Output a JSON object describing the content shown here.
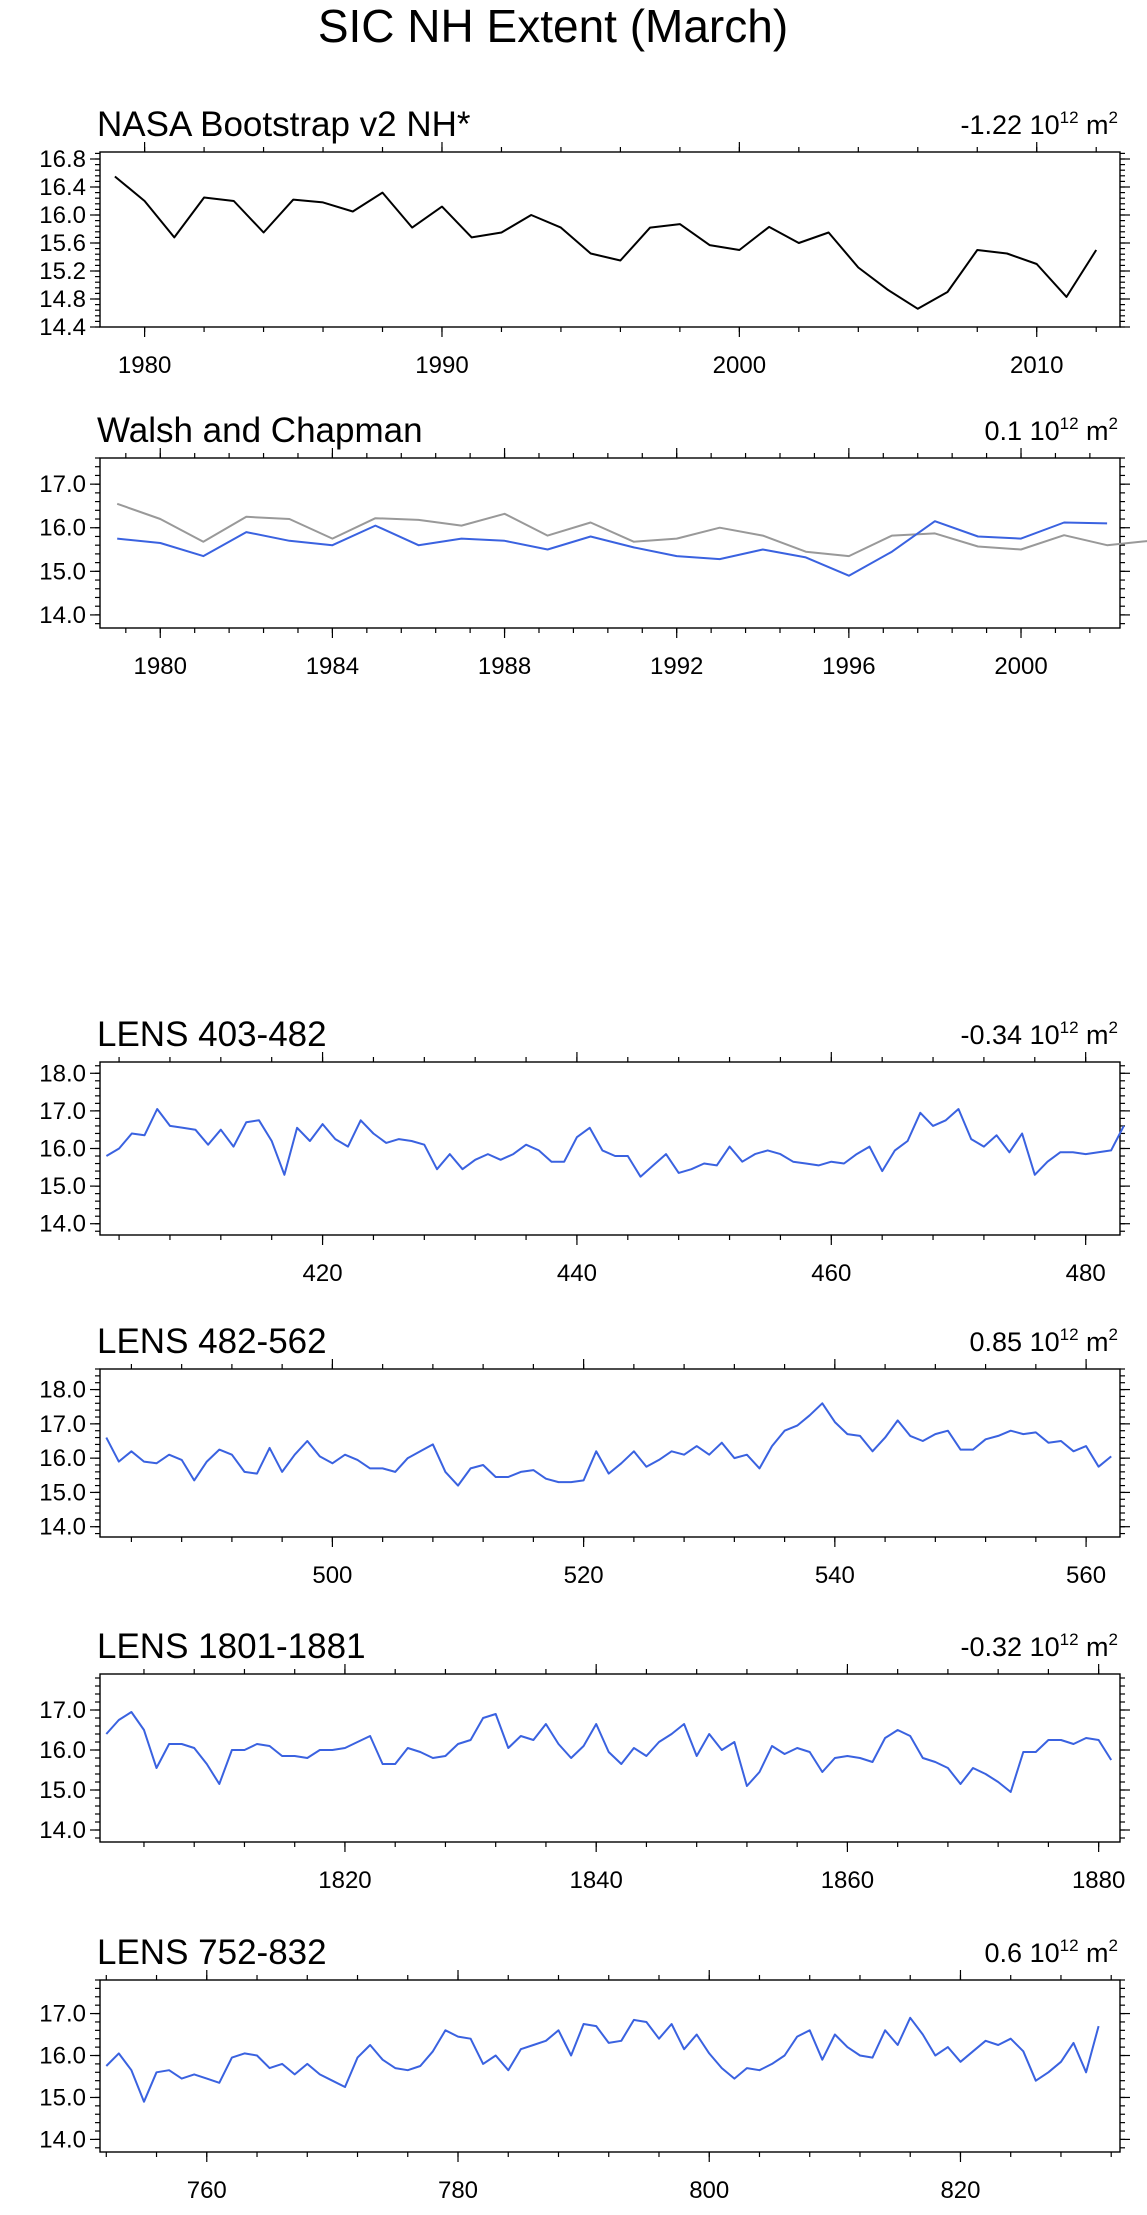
{
  "figure_title": "SIC NH Extent (March)",
  "colors": {
    "black": "#000000",
    "blue": "#3a62e0",
    "gray": "#999999"
  },
  "chart_data": [
    {
      "type": "line",
      "title": "NASA Bootstrap v2 NH*",
      "trend_value": "-1.22 10",
      "trend_exp": "12",
      "trend_unit": " m",
      "trend_unit_exp": "2",
      "xlim": [
        1978.5,
        2012.8
      ],
      "ylim": [
        14.4,
        16.9
      ],
      "xticks": [
        1980,
        1990,
        2000,
        2010
      ],
      "yticks": [
        "14.4",
        "14.8",
        "15.2",
        "15.6",
        "16.0",
        "16.4",
        "16.8"
      ],
      "series": [
        {
          "color": "#000000",
          "x_start": 1979,
          "values": [
            16.55,
            16.2,
            15.68,
            16.25,
            16.2,
            15.75,
            16.22,
            16.18,
            16.05,
            16.32,
            15.82,
            16.12,
            15.68,
            15.75,
            16.0,
            15.82,
            15.45,
            15.35,
            15.82,
            15.87,
            15.57,
            15.5,
            15.83,
            15.6,
            15.75,
            15.25,
            14.93,
            14.66,
            14.9,
            15.5,
            15.45,
            15.3,
            14.83,
            15.5
          ]
        }
      ]
    },
    {
      "type": "line",
      "title": "Walsh and Chapman",
      "trend_value": "0.1 10",
      "trend_exp": "12",
      "trend_unit": " m",
      "trend_unit_exp": "2",
      "xlim": [
        1978.6,
        2002.3
      ],
      "ylim": [
        13.7,
        17.6
      ],
      "xticks": [
        1980,
        1984,
        1988,
        1992,
        1996,
        2000
      ],
      "yticks": [
        "14.0",
        "15.0",
        "16.0",
        "17.0"
      ],
      "series": [
        {
          "color": "#999999",
          "x_start": 1979,
          "values": [
            16.55,
            16.2,
            15.68,
            16.25,
            16.2,
            15.75,
            16.22,
            16.18,
            16.05,
            16.32,
            15.82,
            16.12,
            15.68,
            15.75,
            16.0,
            15.82,
            15.45,
            15.35,
            15.82,
            15.87,
            15.57,
            15.5,
            15.83,
            15.6,
            15.7
          ]
        },
        {
          "color": "#3a62e0",
          "x_start": 1979,
          "values": [
            15.75,
            15.65,
            15.35,
            15.9,
            15.7,
            15.6,
            16.05,
            15.6,
            15.75,
            15.7,
            15.5,
            15.8,
            15.55,
            15.35,
            15.28,
            15.5,
            15.32,
            14.9,
            15.45,
            16.15,
            15.8,
            15.75,
            16.12,
            16.1
          ]
        }
      ]
    },
    {
      "type": "line",
      "title": "LENS 403-482",
      "trend_value": "-0.34 10",
      "trend_exp": "12",
      "trend_unit": " m",
      "trend_unit_exp": "2",
      "xlim": [
        402.5,
        482.7
      ],
      "ylim": [
        13.7,
        18.3
      ],
      "xticks": [
        420,
        440,
        460,
        480
      ],
      "yticks": [
        "14.0",
        "15.0",
        "16.0",
        "17.0",
        "18.0"
      ],
      "series": [
        {
          "color": "#3a62e0",
          "x_start": 403,
          "values": [
            15.8,
            16.0,
            16.4,
            16.35,
            17.05,
            16.6,
            16.55,
            16.5,
            16.1,
            16.5,
            16.05,
            16.7,
            16.75,
            16.2,
            15.3,
            16.55,
            16.2,
            16.65,
            16.25,
            16.05,
            16.75,
            16.4,
            16.15,
            16.25,
            16.2,
            16.1,
            15.45,
            15.85,
            15.45,
            15.7,
            15.85,
            15.7,
            15.85,
            16.1,
            15.95,
            15.65,
            15.65,
            16.3,
            16.55,
            15.95,
            15.8,
            15.8,
            15.25,
            15.55,
            15.85,
            15.35,
            15.45,
            15.6,
            15.55,
            16.05,
            15.65,
            15.85,
            15.95,
            15.85,
            15.65,
            15.6,
            15.55,
            15.65,
            15.6,
            15.85,
            16.05,
            15.4,
            15.95,
            16.2,
            16.95,
            16.6,
            16.75,
            17.05,
            16.25,
            16.05,
            16.35,
            15.9,
            16.4,
            15.3,
            15.65,
            15.9,
            15.9,
            15.85,
            15.9,
            15.95,
            16.6
          ]
        }
      ]
    },
    {
      "type": "line",
      "title": "LENS 482-562",
      "trend_value": "0.85 10",
      "trend_exp": "12",
      "trend_unit": " m",
      "trend_unit_exp": "2",
      "xlim": [
        481.5,
        562.7
      ],
      "ylim": [
        13.7,
        18.6
      ],
      "xticks": [
        500,
        520,
        540,
        560
      ],
      "yticks": [
        "14.0",
        "15.0",
        "16.0",
        "17.0",
        "18.0"
      ],
      "series": [
        {
          "color": "#3a62e0",
          "x_start": 482,
          "values": [
            16.6,
            15.9,
            16.2,
            15.9,
            15.85,
            16.1,
            15.95,
            15.35,
            15.9,
            16.25,
            16.1,
            15.6,
            15.55,
            16.3,
            15.6,
            16.1,
            16.5,
            16.05,
            15.85,
            16.1,
            15.95,
            15.7,
            15.7,
            15.6,
            16.0,
            16.2,
            16.4,
            15.6,
            15.2,
            15.7,
            15.8,
            15.45,
            15.45,
            15.6,
            15.65,
            15.4,
            15.3,
            15.3,
            15.35,
            16.2,
            15.55,
            15.85,
            16.2,
            15.75,
            15.95,
            16.2,
            16.1,
            16.35,
            16.1,
            16.45,
            16.0,
            16.1,
            15.7,
            16.35,
            16.8,
            16.95,
            17.25,
            17.6,
            17.05,
            16.7,
            16.65,
            16.2,
            16.6,
            17.1,
            16.65,
            16.5,
            16.7,
            16.8,
            16.25,
            16.25,
            16.55,
            16.65,
            16.8,
            16.7,
            16.75,
            16.45,
            16.5,
            16.2,
            16.35,
            15.75,
            16.05
          ]
        }
      ]
    },
    {
      "type": "line",
      "title": "LENS 1801-1881",
      "trend_value": "-0.32 10",
      "trend_exp": "12",
      "trend_unit": " m",
      "trend_unit_exp": "2",
      "xlim": [
        1800.5,
        1881.7
      ],
      "ylim": [
        13.7,
        17.9
      ],
      "xticks": [
        1820,
        1840,
        1860,
        1880
      ],
      "yticks": [
        "14.0",
        "15.0",
        "16.0",
        "17.0"
      ],
      "series": [
        {
          "color": "#3a62e0",
          "x_start": 1801,
          "values": [
            16.4,
            16.75,
            16.95,
            16.5,
            15.55,
            16.15,
            16.15,
            16.05,
            15.65,
            15.15,
            16.0,
            16.0,
            16.15,
            16.1,
            15.85,
            15.85,
            15.8,
            16.0,
            16.0,
            16.05,
            16.2,
            16.35,
            15.65,
            15.65,
            16.05,
            15.95,
            15.8,
            15.85,
            16.15,
            16.25,
            16.8,
            16.9,
            16.05,
            16.35,
            16.25,
            16.65,
            16.15,
            15.8,
            16.1,
            16.65,
            15.95,
            15.65,
            16.05,
            15.85,
            16.2,
            16.4,
            16.65,
            15.85,
            16.4,
            16.0,
            16.2,
            15.1,
            15.45,
            16.1,
            15.9,
            16.05,
            15.95,
            15.45,
            15.8,
            15.85,
            15.8,
            15.7,
            16.3,
            16.5,
            16.35,
            15.8,
            15.7,
            15.55,
            15.15,
            15.55,
            15.4,
            15.2,
            14.95,
            15.95,
            15.95,
            16.25,
            16.25,
            16.15,
            16.3,
            16.25,
            15.75
          ]
        }
      ]
    },
    {
      "type": "line",
      "title": "LENS 752-832",
      "trend_value": "0.6 10",
      "trend_exp": "12",
      "trend_unit": " m",
      "trend_unit_exp": "2",
      "xlim": [
        751.5,
        832.7
      ],
      "ylim": [
        13.7,
        17.8
      ],
      "xticks": [
        760,
        780,
        800,
        820
      ],
      "yticks": [
        "14.0",
        "15.0",
        "16.0",
        "17.0"
      ],
      "series": [
        {
          "color": "#3a62e0",
          "x_start": 752,
          "values": [
            15.75,
            16.05,
            15.65,
            14.9,
            15.6,
            15.65,
            15.45,
            15.55,
            15.45,
            15.35,
            15.95,
            16.05,
            16.0,
            15.7,
            15.8,
            15.55,
            15.8,
            15.55,
            15.4,
            15.25,
            15.95,
            16.25,
            15.9,
            15.7,
            15.65,
            15.75,
            16.1,
            16.6,
            16.45,
            16.4,
            15.8,
            16.0,
            15.65,
            16.15,
            16.25,
            16.35,
            16.6,
            16.0,
            16.75,
            16.7,
            16.3,
            16.35,
            16.85,
            16.8,
            16.4,
            16.75,
            16.15,
            16.5,
            16.05,
            15.7,
            15.45,
            15.7,
            15.65,
            15.8,
            16.0,
            16.45,
            16.6,
            15.9,
            16.5,
            16.2,
            16.0,
            15.95,
            16.6,
            16.25,
            16.9,
            16.5,
            16.0,
            16.2,
            15.85,
            16.1,
            16.35,
            16.25,
            16.4,
            16.1,
            15.4,
            15.6,
            15.85,
            16.3,
            15.6,
            16.7
          ]
        }
      ]
    }
  ]
}
